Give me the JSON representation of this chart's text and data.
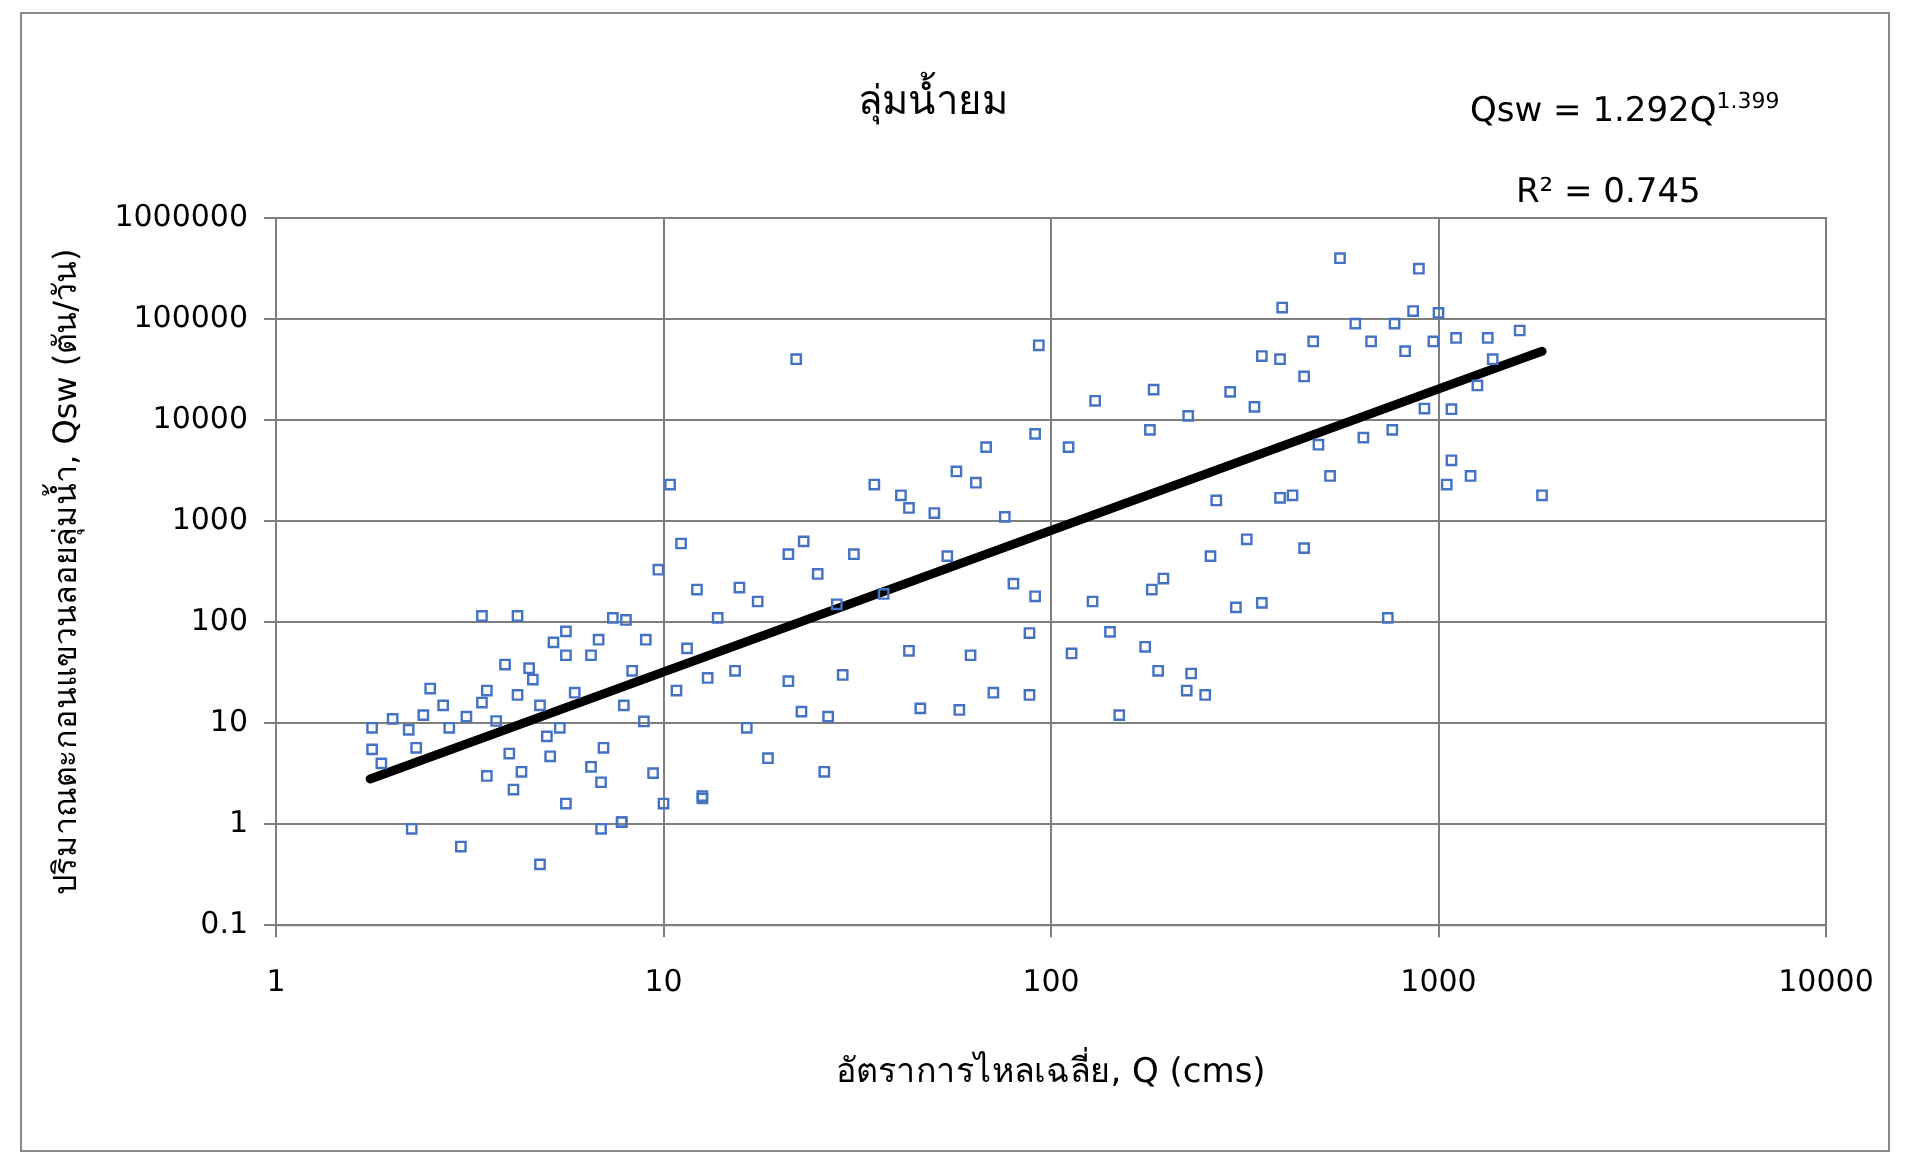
{
  "chart_data": {
    "type": "scatter",
    "title": "ลุ่มน้ำยม",
    "xlabel": "อัตราการไหลเฉลี่ย, Q (cms)",
    "ylabel": "ปริมาณตะกอนแขวนลอยลุ่มน้ำ, Qsw (ตัน/วัน)",
    "annotations": [
      "Qsw = 1.292Q$^{1.399}$",
      "R² = 0.745"
    ],
    "log": "xy",
    "grid": true,
    "legend": false,
    "marker": "square",
    "xlim": [
      1,
      10000
    ],
    "xticks": [
      1,
      10,
      100,
      1000,
      10000
    ],
    "ylim": [
      0.1,
      1000000
    ],
    "yticks": [
      0.1,
      1,
      10,
      100,
      1000,
      10000,
      100000,
      1000000
    ],
    "series": [
      {
        "color": "#4472c4",
        "x": [
          1.77,
          1.77,
          1.87,
          2.0,
          2.2,
          2.3,
          2.4,
          2.5,
          2.7,
          2.8,
          3.1,
          3.4,
          3.5,
          3.5,
          3.7,
          3.9,
          4.0,
          4.1,
          4.3,
          4.2,
          4.5,
          4.6,
          4.8,
          5.0,
          5.1,
          5.2,
          5.4,
          5.6,
          5.6,
          5.6,
          5.9,
          6.5,
          6.5,
          6.8,
          6.9,
          7.0,
          7.4,
          7.8,
          8.0,
          7.9,
          8.3,
          9.0,
          8.9,
          9.4,
          9.7,
          10.4,
          10.8,
          11.1,
          11.5,
          12.6,
          12.2,
          13,
          13.8,
          15.7,
          16.4,
          15.3,
          17.5,
          18.6,
          21,
          22,
          21,
          22.7,
          23,
          26,
          26.6,
          25,
          28,
          29,
          31,
          35,
          37,
          41,
          43,
          43,
          46,
          50,
          54,
          57,
          58,
          62,
          64,
          68,
          71,
          76,
          80,
          88,
          91,
          91,
          93,
          88,
          113,
          111,
          130,
          128,
          142,
          150,
          175,
          184,
          189,
          182,
          195,
          180,
          224,
          230,
          250,
          226,
          258,
          267,
          290,
          300,
          320,
          335,
          350,
          350,
          390,
          395,
          390,
          420,
          450,
          450,
          475,
          490,
          525,
          557,
          610,
          640,
          670,
          740,
          760,
          770,
          820,
          860,
          890,
          920,
          970,
          1000,
          1050,
          1080,
          1080,
          1110,
          1210,
          1260,
          1340,
          1380,
          1620,
          1850,
          2.24,
          3.0,
          4.8,
          3.4,
          4.2,
          6.9,
          7.8,
          10,
          12.6
        ],
        "values": [
          9,
          5.5,
          4,
          11,
          8.6,
          5.7,
          12,
          22,
          15,
          9,
          11.6,
          16,
          21,
          3,
          10.5,
          38,
          5,
          2.2,
          3.3,
          19,
          35,
          27,
          15,
          7.4,
          4.7,
          63,
          9,
          47,
          81,
          1.6,
          20,
          47,
          3.7,
          67,
          2.6,
          5.7,
          110,
          1.05,
          105,
          15,
          33,
          67,
          10.4,
          3.2,
          330,
          2300,
          21,
          600,
          55,
          1.9,
          210,
          28,
          110,
          220,
          9,
          33,
          160,
          4.5,
          470,
          40000,
          26,
          13,
          630,
          3.3,
          11.6,
          300,
          150,
          30,
          470,
          2300,
          190,
          1800,
          1350,
          52,
          14,
          1200,
          450,
          3100,
          13.5,
          47,
          2400,
          5400,
          20,
          1100,
          240,
          19,
          7300,
          180,
          55000,
          78,
          49,
          5400,
          15500,
          160,
          80,
          12,
          57,
          20000,
          33,
          210,
          270,
          8000,
          21,
          31,
          19,
          11000,
          450,
          1600,
          19000,
          140,
          660,
          13500,
          155,
          43000,
          40000,
          130000,
          1700,
          1800,
          540,
          27000,
          60000,
          5700,
          2800,
          400000,
          90000,
          6700,
          60000,
          110,
          8000,
          90000,
          48000,
          120000,
          315000,
          13000,
          60000,
          115000,
          2300,
          12800,
          4000,
          65000,
          2800,
          22000,
          65000,
          40000,
          77000,
          1800,
          0.9,
          0.6,
          0.4,
          115,
          115,
          0.9,
          1.05,
          1.6,
          1.8
        ]
      },
      {
        "type": "line",
        "color": "#000000",
        "x": [
          1.75,
          1850
        ],
        "values": [
          2.8,
          48000
        ],
        "marker": "none"
      }
    ]
  }
}
